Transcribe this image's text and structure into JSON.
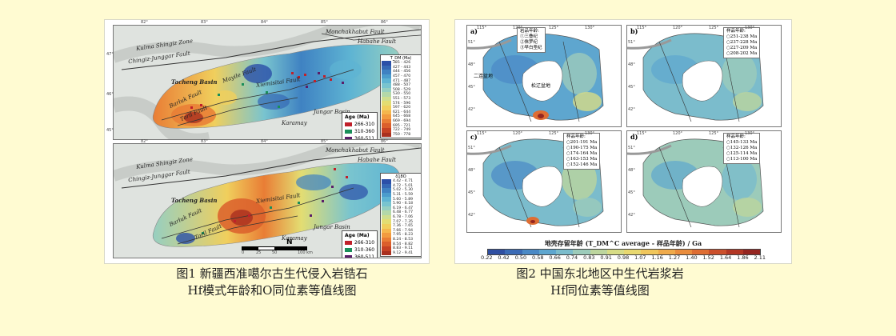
{
  "figure1": {
    "caption_line1": "图1 新疆西准噶尔古生代侵入岩锆石",
    "caption_line2": "Hf模式年龄和O同位素等值线图",
    "top_map": {
      "legend_title": "T_DM (Ma)",
      "legend": [
        "385 - 426",
        "427 - 443",
        "444 - 456",
        "457 - 470",
        "471 - 487",
        "488 - 507",
        "508 - 529",
        "530 - 550",
        "551 - 573",
        "574 - 596",
        "597 - 620",
        "621 - 644",
        "645 - 668",
        "669 - 694",
        "695 - 721",
        "722 - 749",
        "750 - 778"
      ],
      "legend_colors": [
        "#2b4fa8",
        "#3568b5",
        "#3f82c2",
        "#4b9ccc",
        "#5eb4d3",
        "#79c4cf",
        "#96cfc1",
        "#b4d8a9",
        "#cfde8f",
        "#e3dd72",
        "#f0cf5d",
        "#f5b64d",
        "#f29b40",
        "#e97d35",
        "#db5f2c",
        "#c64224",
        "#a9301f"
      ],
      "places": [
        "Karamay",
        "Jungar Basin",
        "Tacheng Basin",
        "Barluk Fault",
        "Toril Fault",
        "Xiemisitai Fault",
        "Mayile Fault",
        "Chingiz-Junggar Fault",
        "Kulma Shingiz Zone",
        "Habahe Fault",
        "Monchakhabut Fault"
      ]
    },
    "bottom_map": {
      "legend_title": "δ18O",
      "legend": [
        "4.42 - 4.71",
        "4.72 - 5.01",
        "5.02 - 5.30",
        "5.31 - 5.59",
        "5.60 - 5.89",
        "5.90 - 6.18",
        "6.19 - 6.47",
        "6.48 - 6.77",
        "6.78 - 7.06",
        "7.07 - 7.35",
        "7.36 - 7.65",
        "7.66 - 7.94",
        "7.95 - 8.23",
        "8.24 - 8.53",
        "8.54 - 8.82",
        "8.83 - 9.11",
        "9.12 - 9.41"
      ],
      "legend_colors": [
        "#2b4fa8",
        "#3568b5",
        "#3f82c2",
        "#4b9ccc",
        "#5eb4d3",
        "#79c4cf",
        "#96cfc1",
        "#b4d8a9",
        "#cfde8f",
        "#e3dd72",
        "#f0cf5d",
        "#f5b64d",
        "#f29b40",
        "#e97d35",
        "#db5f2c",
        "#c64224",
        "#a9301f"
      ],
      "places": [
        "Karamay",
        "Jungar Basin",
        "Tacheng Basin",
        "Barluk Fault",
        "Toril Fault",
        "Xiemisitai Fault",
        "Chingiz-Junggar Fault",
        "Kulma Shingiz Zone",
        "Habahe Fault",
        "Monchakhabut Fault"
      ],
      "scale": [
        "0",
        "25",
        "50",
        "100 km"
      ],
      "north": "N"
    },
    "age_title": "Age (Ma)",
    "age_items": [
      {
        "label": "266-310",
        "color": "#c0202a"
      },
      {
        "label": "310-360",
        "color": "#1a8f5a"
      },
      {
        "label": "360-511",
        "color": "#5a1e6a"
      }
    ],
    "lat_ticks_top": [
      "47°",
      "46°",
      "45°"
    ],
    "lon_ticks": [
      "82°",
      "83°",
      "84°",
      "85°",
      "86°"
    ]
  },
  "figure2": {
    "caption_line1": "图2 中国东北地区中生代岩浆岩",
    "caption_line2": "Hf同位素等值线图",
    "panels": [
      {
        "letter": "a)",
        "box_title": "岩品年龄:",
        "box_items": [
          "①三叠纪",
          "②侏罗纪",
          "③早白垩纪"
        ]
      },
      {
        "letter": "b)",
        "box_title": "样品年龄:",
        "box_items": [
          "○251-238 Ma",
          "○237-228 Ma",
          "○227-209 Ma",
          "○208-202 Ma"
        ]
      },
      {
        "letter": "c)",
        "box_title": "样品年龄:",
        "box_items": [
          "○201-191 Ma",
          "○190-175 Ma",
          "○174-164 Ma",
          "○163-153 Ma",
          "○152-146 Ma"
        ]
      },
      {
        "letter": "d)",
        "box_title": "样品年龄:",
        "box_items": [
          "○145-133 Ma",
          "○132-126 Ma",
          "○125-114 Ma",
          "○113-100 Ma"
        ]
      }
    ],
    "panel_a_labels": [
      "二连盆地",
      "松辽盆地"
    ],
    "lon_ticks": [
      "115°",
      "120°",
      "125°",
      "130°"
    ],
    "lat_ticks": [
      "51°",
      "48°",
      "45°",
      "42°"
    ],
    "colorbar_title": "地壳存留年龄 (T_DM^C average - 样品年龄) / Ga",
    "colorbar_ticks": [
      "0.22",
      "0.42",
      "0.50",
      "0.58",
      "0.66",
      "0.74",
      "0.83",
      "0.91",
      "0.98",
      "1.07",
      "1.16",
      "1.27",
      "1.40",
      "1.52",
      "1.64",
      "1.86",
      "2.11"
    ],
    "colorbar_colors": [
      "#2f4fa2",
      "#3b6bb6",
      "#4a89c6",
      "#5ea6cf",
      "#7bbccc",
      "#9ccbba",
      "#bcd59e",
      "#d7dc86",
      "#e8d870",
      "#f0c65c",
      "#efaa4b",
      "#e98c3d",
      "#de6d33",
      "#cb4f2b",
      "#b23624",
      "#952520"
    ]
  }
}
